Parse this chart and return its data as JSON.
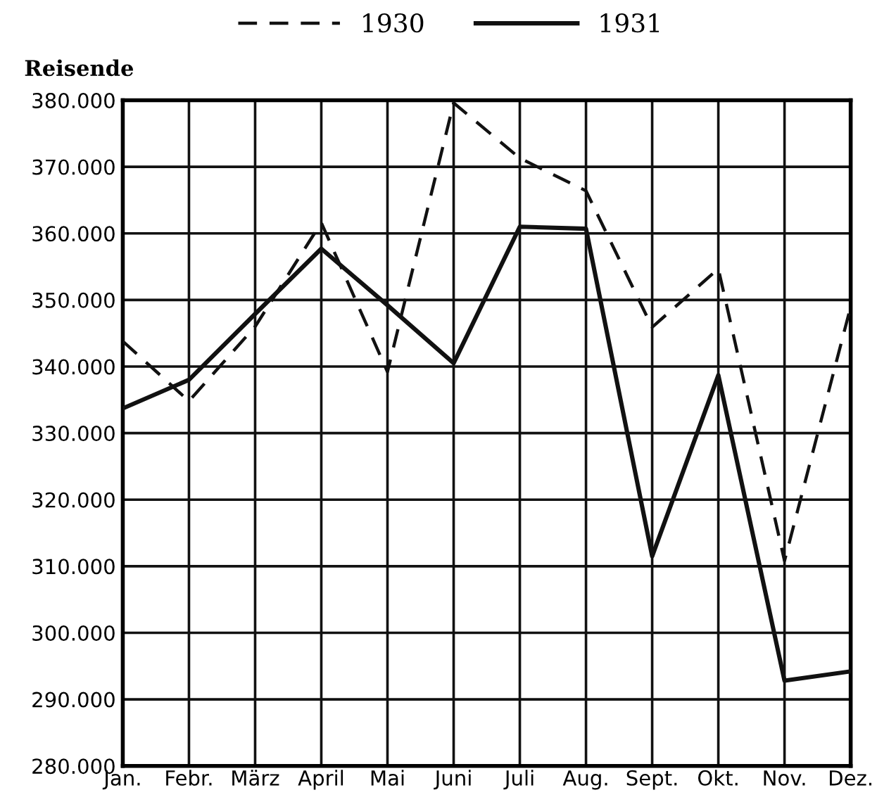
{
  "chart_data": {
    "type": "line",
    "ylabel": "Reisende",
    "categories": [
      "Jan.",
      "Febr.",
      "März",
      "April",
      "Mai",
      "Juni",
      "Juli",
      "Aug.",
      "Sept.",
      "Okt.",
      "Nov.",
      "Dez."
    ],
    "series": [
      {
        "name": "1930",
        "color": "#111111",
        "line_style": "dashed",
        "values": [
          343800,
          334800,
          346000,
          361600,
          339200,
          379600,
          371300,
          366400,
          345900,
          354700,
          310800,
          349000
        ]
      },
      {
        "name": "1931",
        "color": "#111111",
        "line_style": "solid",
        "values": [
          333700,
          338000,
          347900,
          357700,
          349200,
          340500,
          361000,
          360700,
          311500,
          338700,
          292800,
          294200
        ]
      }
    ],
    "ylim": [
      280000,
      380000
    ],
    "yticks": [
      {
        "value": 280000,
        "label": "280.000"
      },
      {
        "value": 290000,
        "label": "290.000"
      },
      {
        "value": 300000,
        "label": "300.000"
      },
      {
        "value": 310000,
        "label": "310.000"
      },
      {
        "value": 320000,
        "label": "320.000"
      },
      {
        "value": 330000,
        "label": "330.000"
      },
      {
        "value": 340000,
        "label": "340.000"
      },
      {
        "value": 350000,
        "label": "350.000"
      },
      {
        "value": 360000,
        "label": "360.000"
      },
      {
        "value": 370000,
        "label": "370.000"
      },
      {
        "value": 380000,
        "label": "380.000"
      }
    ],
    "grid": true,
    "legend": "top",
    "marker": "none"
  }
}
